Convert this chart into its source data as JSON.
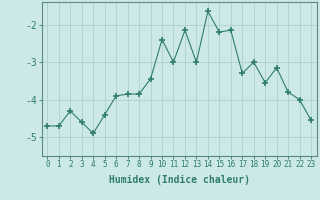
{
  "x": [
    0,
    1,
    2,
    3,
    4,
    5,
    6,
    7,
    8,
    9,
    10,
    11,
    12,
    13,
    14,
    15,
    16,
    17,
    18,
    19,
    20,
    21,
    22,
    23
  ],
  "y": [
    -4.7,
    -4.7,
    -4.3,
    -4.6,
    -4.9,
    -4.4,
    -3.9,
    -3.85,
    -3.85,
    -3.45,
    -2.4,
    -3.0,
    -2.15,
    -3.0,
    -1.65,
    -2.2,
    -2.15,
    -3.3,
    -3.0,
    -3.55,
    -3.15,
    -3.8,
    -4.0,
    -4.55
  ],
  "line_color": "#2e7d6e",
  "marker": "+",
  "marker_size": 4,
  "background_color": "#cce9e7",
  "grid_color": "#b0d0cc",
  "axis_color": "#5a8a80",
  "tick_color": "#2e7d6e",
  "xlabel": "Humidex (Indice chaleur)",
  "xlabel_fontsize": 7,
  "ylabel": "",
  "ylim": [
    -5.5,
    -1.4
  ],
  "xlim": [
    -0.5,
    23.5
  ],
  "yticks": [
    -5,
    -4,
    -3,
    -2
  ],
  "xtick_labels": [
    "0",
    "1",
    "2",
    "3",
    "4",
    "5",
    "6",
    "7",
    "8",
    "9",
    "10",
    "11",
    "12",
    "13",
    "14",
    "15",
    "16",
    "17",
    "18",
    "19",
    "20",
    "21",
    "22",
    "23"
  ],
  "title": ""
}
